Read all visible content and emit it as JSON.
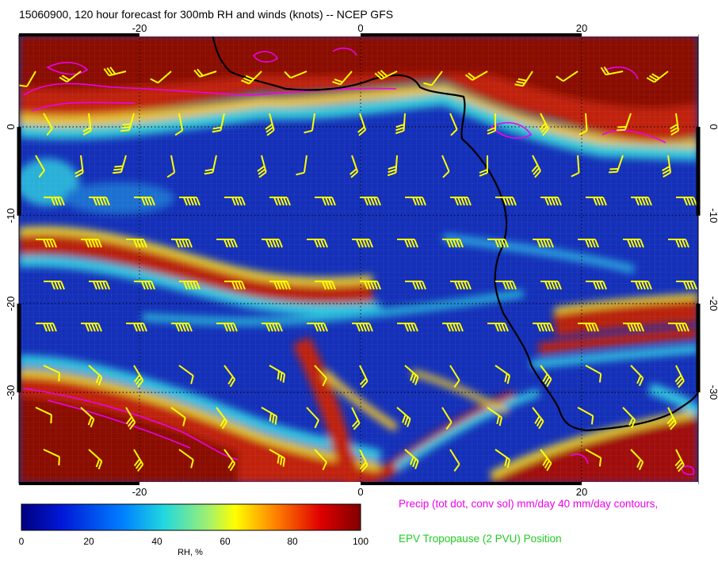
{
  "title": "15060900, 120 hour forecast for 300mb RH and winds (knots) -- NCEP GFS",
  "map": {
    "lon_range": [
      -30,
      30
    ],
    "lat_range": [
      -40,
      10
    ],
    "lon_ticks_top": [
      "-20",
      "0",
      "20"
    ],
    "lon_ticks_bottom": [
      "-20",
      "0",
      "20"
    ],
    "lat_ticks_left": [
      "0",
      "-10",
      "-20",
      "-30"
    ],
    "lat_ticks_right": [
      "0",
      "-10",
      "-20",
      "-30"
    ]
  },
  "colorbar": {
    "label": "RH, %",
    "ticks": [
      "0",
      "20",
      "40",
      "60",
      "80",
      "100"
    ],
    "range": [
      0,
      100
    ]
  },
  "notes": {
    "precip": "Precip (tot dot, conv sol) mm/day 40 mm/day contours,",
    "precip_color": "#ee00ee",
    "epv": "EPV Tropopause (2 PVU) Position",
    "epv_color": "#22cc22"
  },
  "colors": {
    "rh_low": "#10108a",
    "rh_mid": "#1ec8d8",
    "rh_yellow": "#e8e030",
    "rh_high": "#b01010",
    "barb": "#ffff00",
    "coast": "#000000",
    "precip_contour": "#ee00ee"
  }
}
